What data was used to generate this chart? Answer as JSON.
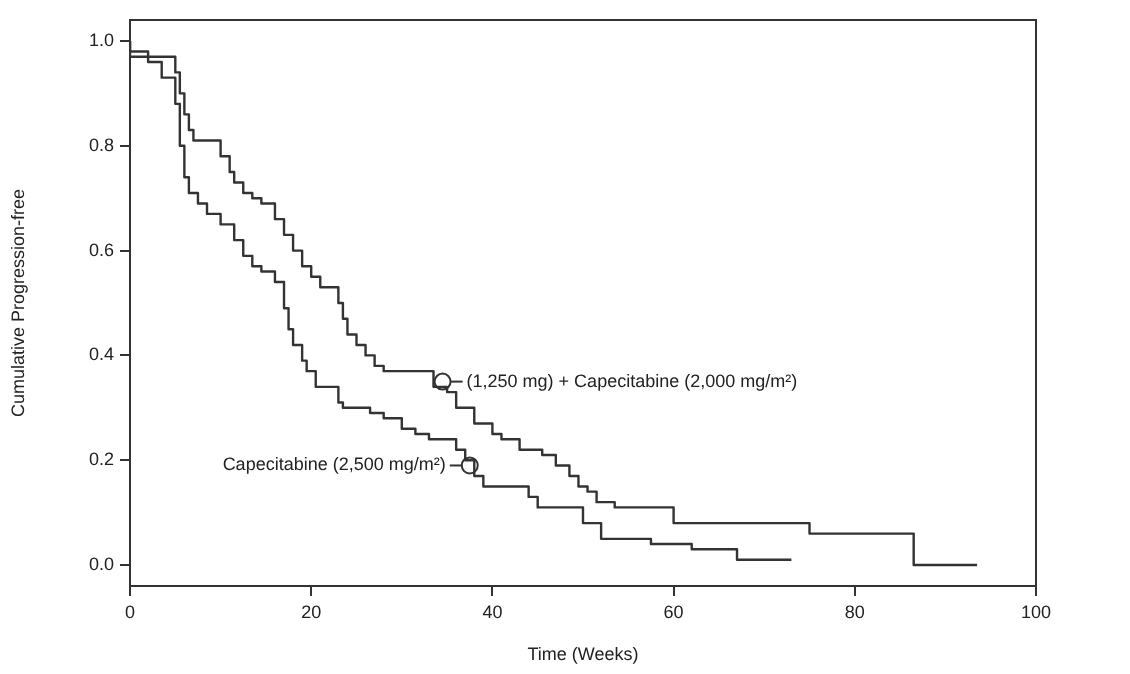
{
  "chart_data": {
    "type": "step",
    "xlabel": "Time (Weeks)",
    "ylabel": "Cumulative Progression-free",
    "xlim": [
      0,
      100
    ],
    "xticks": [
      0,
      20,
      40,
      60,
      80,
      100
    ],
    "ylim": [
      -0.04,
      1.04
    ],
    "yticks": [
      {
        "value": 0,
        "label": "0.0"
      },
      {
        "value": 0.2,
        "label": "0.2"
      },
      {
        "value": 0.4,
        "label": "0.4"
      },
      {
        "value": 0.6,
        "label": "0.6"
      },
      {
        "value": 0.8,
        "label": "0.8"
      },
      {
        "value": 1,
        "label": "1.0"
      }
    ],
    "grid": false,
    "legend": false,
    "marker": "none",
    "line_style": "solid",
    "series": [
      {
        "color": "#333333",
        "x": [
          0,
          5,
          5.5,
          6,
          6.5,
          7,
          10,
          11,
          11.5,
          12.5,
          13.5,
          14.5,
          16,
          17,
          18,
          19,
          20,
          21,
          23,
          23.5,
          24,
          25,
          26,
          27,
          28,
          33.5,
          35,
          36,
          38,
          40,
          41,
          43,
          45.5,
          47,
          48.5,
          49.5,
          50.5,
          51.5,
          53.5,
          60,
          75,
          86.5,
          93.5
        ],
        "values": [
          1,
          0.97,
          0.94,
          0.9,
          0.86,
          0.83,
          0.81,
          0.78,
          0.75,
          0.73,
          0.71,
          0.7,
          0.69,
          0.66,
          0.63,
          0.6,
          0.57,
          0.55,
          0.53,
          0.5,
          0.47,
          0.44,
          0.42,
          0.4,
          0.38,
          0.37,
          0.34,
          0.33,
          0.3,
          0.27,
          0.25,
          0.24,
          0.22,
          0.21,
          0.19,
          0.17,
          0.15,
          0.14,
          0.12,
          0.11,
          0.08,
          0.06,
          0
        ]
      },
      {
        "color": "#333333",
        "x": [
          0,
          2,
          3.5,
          5,
          5.5,
          6,
          6.5,
          7.5,
          8.5,
          10,
          11.5,
          12.5,
          13.5,
          14.5,
          16,
          17,
          17.5,
          18,
          19,
          19.5,
          20.5,
          23,
          23.5,
          26.5,
          28,
          30,
          31.5,
          33,
          36,
          37,
          38,
          39,
          44,
          45,
          50,
          52,
          57.5,
          62,
          67,
          73
        ],
        "values": [
          1,
          0.98,
          0.96,
          0.93,
          0.88,
          0.8,
          0.74,
          0.71,
          0.69,
          0.67,
          0.65,
          0.62,
          0.59,
          0.57,
          0.56,
          0.54,
          0.49,
          0.45,
          0.42,
          0.39,
          0.37,
          0.34,
          0.31,
          0.3,
          0.29,
          0.28,
          0.26,
          0.25,
          0.24,
          0.22,
          0.2,
          0.17,
          0.15,
          0.13,
          0.11,
          0.08,
          0.05,
          0.04,
          0.03,
          0.01
        ]
      }
    ],
    "annotations": [
      {
        "text": "(1,250 mg) + Capecitabine (2,000 mg/m²)",
        "x": 34.5,
        "y": 0.35
      },
      {
        "text": "Capecitabine (2,500 mg/m²)",
        "x": 37.5,
        "y": 0.19
      }
    ]
  }
}
